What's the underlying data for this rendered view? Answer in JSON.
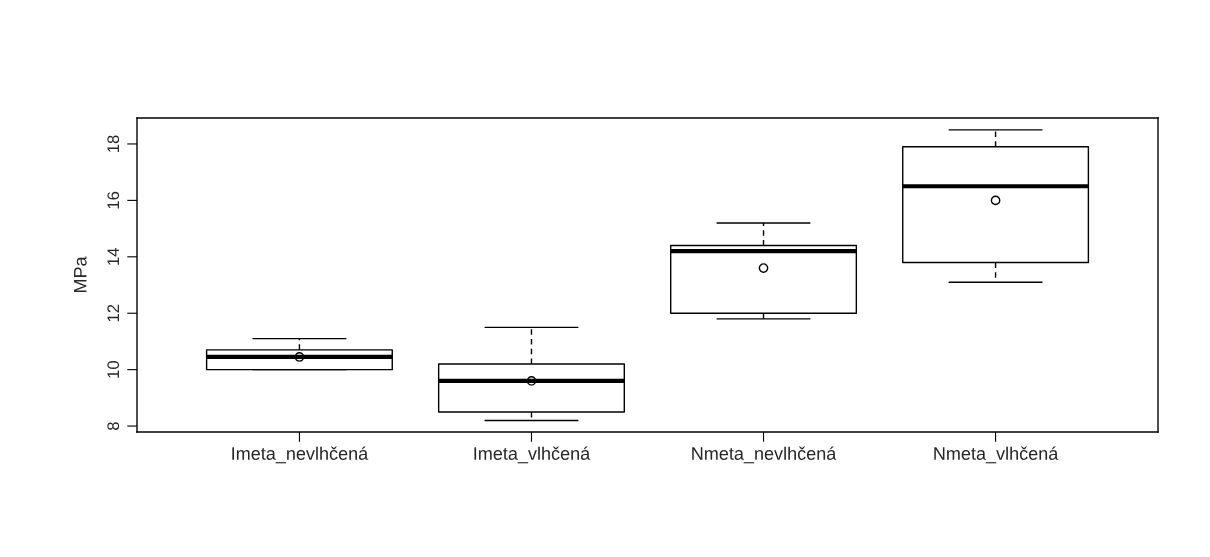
{
  "chart_data": {
    "type": "box",
    "ylabel": "MPa",
    "categories": [
      "Imeta_nevlhčená",
      "Imeta_vlhčená",
      "Nmeta_nevlhčená",
      "Nmeta_vlhčená"
    ],
    "boxes": [
      {
        "low": 10.0,
        "q1": 10.0,
        "median": 10.45,
        "q3": 10.7,
        "high": 11.1,
        "mean": 10.45
      },
      {
        "low": 8.2,
        "q1": 8.5,
        "median": 9.6,
        "q3": 10.2,
        "high": 11.5,
        "mean": 9.6
      },
      {
        "low": 11.8,
        "q1": 12.0,
        "median": 14.2,
        "q3": 14.4,
        "high": 15.2,
        "mean": 13.6
      },
      {
        "low": 13.1,
        "q1": 13.8,
        "median": 16.5,
        "q3": 17.9,
        "high": 18.5,
        "mean": 16.0
      }
    ],
    "ylim": [
      7.79,
      18.92
    ],
    "yticks": [
      8,
      10,
      12,
      14,
      16,
      18
    ],
    "grid": false,
    "legend": false
  }
}
